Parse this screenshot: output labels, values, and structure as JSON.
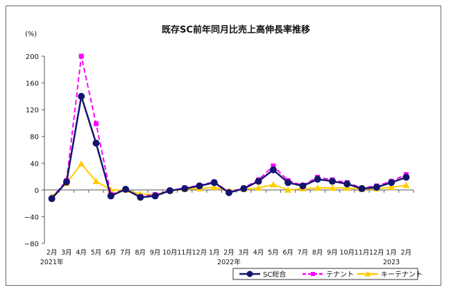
{
  "chart_data": {
    "type": "line",
    "title": "既存SC前年同月比売上高伸長率推移",
    "ylabel": "(%)",
    "ylim": [
      -80,
      200
    ],
    "yticks": [
      200,
      160,
      120,
      80,
      40,
      0,
      -40,
      -80
    ],
    "categories": [
      "2月",
      "3月",
      "4月",
      "5月",
      "6月",
      "7月",
      "8月",
      "9月",
      "10月",
      "11月",
      "12月",
      "1月",
      "2月",
      "3月",
      "4月",
      "5月",
      "6月",
      "7月",
      "8月",
      "9月",
      "10月",
      "11月",
      "12月",
      "1月",
      "2月"
    ],
    "year_labels": [
      {
        "text": "2021年",
        "index": 0
      },
      {
        "text": "2022年",
        "index": 12
      },
      {
        "text": "2023",
        "index": 23
      }
    ],
    "grid": false,
    "legend_position": "bottom-right",
    "series": [
      {
        "name": "SC総合",
        "color": "#14146e",
        "marker": "circle",
        "dash": "",
        "values": [
          -13,
          12,
          140,
          70,
          -9,
          1,
          -11,
          -9,
          -1,
          2,
          6,
          11,
          -4,
          2,
          13,
          30,
          11,
          6,
          16,
          13,
          9,
          2,
          4,
          11,
          19
        ]
      },
      {
        "name": "テナント",
        "color": "#ff00ff",
        "marker": "square",
        "dash": "7,4",
        "values": [
          -12,
          14,
          200,
          99,
          -7,
          1,
          -10,
          -7,
          -1,
          3,
          7,
          12,
          -3,
          3,
          15,
          36,
          14,
          7,
          19,
          15,
          11,
          3,
          6,
          13,
          23
        ]
      },
      {
        "name": "キーテナント",
        "color": "#ffcc00",
        "marker": "triangle",
        "dash": "",
        "values": [
          -10,
          10,
          39,
          13,
          0,
          0,
          -6,
          -7,
          -1,
          1,
          2,
          4,
          -1,
          1,
          3,
          8,
          0,
          2,
          3,
          3,
          3,
          1,
          2,
          4,
          7
        ]
      }
    ]
  }
}
